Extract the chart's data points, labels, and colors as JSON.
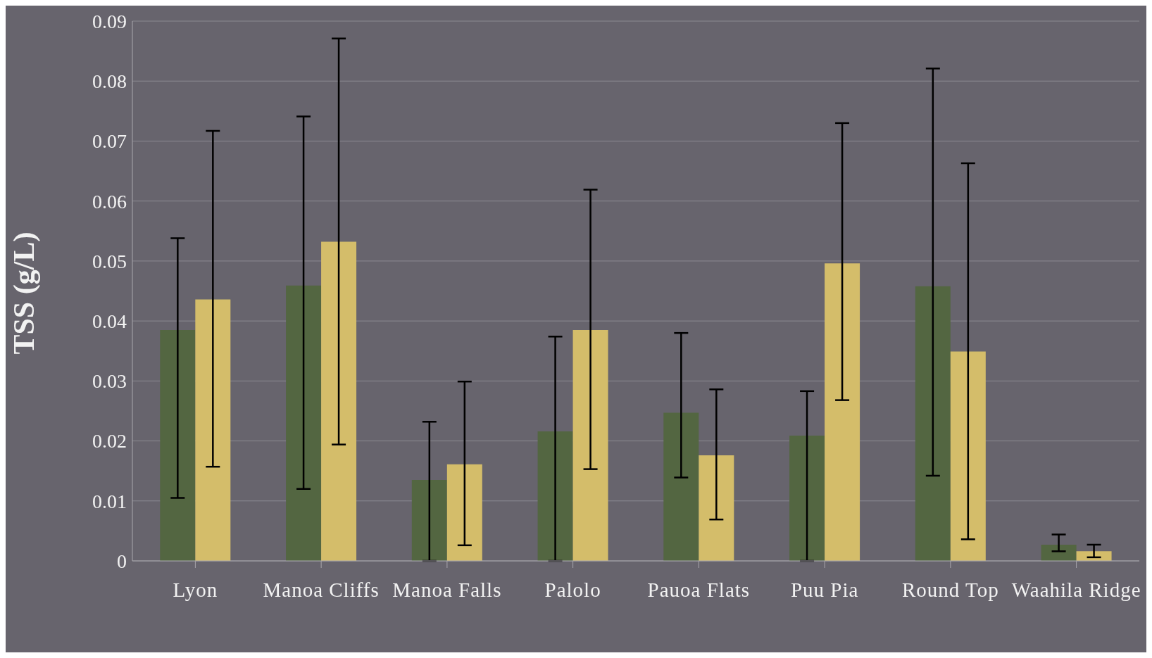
{
  "chart_data": {
    "type": "bar",
    "ylabel": "TSS (g/L)",
    "categories": [
      "Lyon",
      "Manoa Cliffs",
      "Manoa Falls",
      "Palolo",
      "Pauoa Flats",
      "Puu Pia",
      "Round Top",
      "Waahila Ridge"
    ],
    "series": [
      {
        "color": "#536641",
        "values": [
          0.0385,
          0.0459,
          0.0135,
          0.0216,
          0.0247,
          0.0209,
          0.0458,
          0.0027
        ],
        "errors": [
          [
            0.0105,
            0.0538
          ],
          [
            0.012,
            0.0741
          ],
          [
            0,
            0.0232
          ],
          [
            0,
            0.0374
          ],
          [
            0.0139,
            0.038
          ],
          [
            0,
            0.0283
          ],
          [
            0.0142,
            0.0821
          ],
          [
            0.0016,
            0.0044
          ]
        ]
      },
      {
        "color": "#d4bd6a",
        "values": [
          0.0436,
          0.0532,
          0.0161,
          0.0385,
          0.0176,
          0.0496,
          0.0349,
          0.0016
        ],
        "errors": [
          [
            0.0157,
            0.0717
          ],
          [
            0.0194,
            0.0871
          ],
          [
            0.0026,
            0.0299
          ],
          [
            0.0153,
            0.0619
          ],
          [
            0.0069,
            0.0286
          ],
          [
            0.0268,
            0.073
          ],
          [
            0.0036,
            0.0663
          ],
          [
            0.0006,
            0.0027
          ]
        ]
      }
    ],
    "ylim": [
      0,
      0.09
    ],
    "yticks": [
      0,
      0.01,
      0.02,
      0.03,
      0.04,
      0.05,
      0.06,
      0.07,
      0.08,
      0.09
    ],
    "grid": "y",
    "legend": false
  }
}
